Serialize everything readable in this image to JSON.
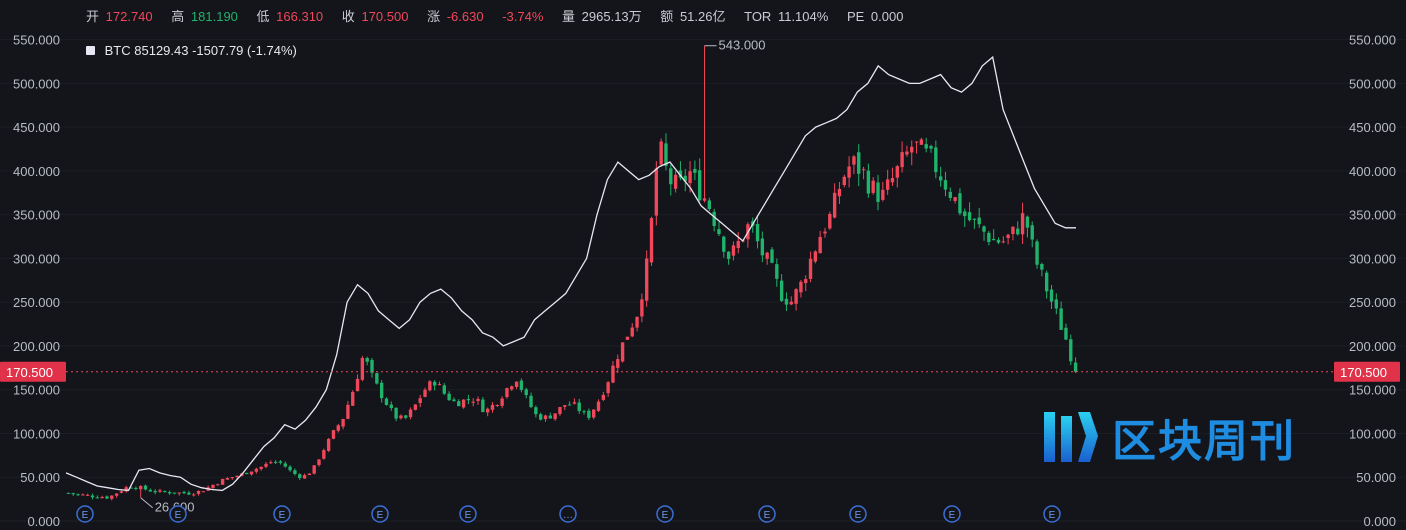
{
  "header": {
    "open_label": "开",
    "open_value": "172.740",
    "high_label": "高",
    "high_value": "181.190",
    "low_label": "低",
    "low_value": "166.310",
    "close_label": "收",
    "close_value": "170.500",
    "change_label": "涨",
    "change_value": "-6.630",
    "change_pct": "-3.74%",
    "volume_label": "量",
    "volume_value": "2965.13万",
    "amount_label": "额",
    "amount_value": "51.26亿",
    "tor_label": "TOR",
    "tor_value": "11.104%",
    "pe_label": "PE",
    "pe_value": "0.000"
  },
  "legend": {
    "symbol": "BTC",
    "value": "85129.43 -1507.79 (-1.74%)"
  },
  "watermark": {
    "text": "区块周刊"
  },
  "colors": {
    "up": "#f0475a",
    "down": "#1fb36b",
    "overlay": "#e8e6f5",
    "background": "#14151a",
    "brand": "#1e8ce0"
  },
  "chart_data": {
    "type": "candlestick",
    "ylim": [
      0,
      560
    ],
    "y_ticks": [
      "550.000",
      "500.000",
      "450.000",
      "400.000",
      "350.000",
      "300.000",
      "250.000",
      "200.000",
      "150.000",
      "100.000",
      "50.000",
      "0.000"
    ],
    "last_price": 170.5,
    "last_price_label": "170.500",
    "max_annotation": {
      "label": "543.000",
      "value": 543
    },
    "min_annotation": {
      "label": "26.600",
      "value": 26.6
    },
    "event_markers": [
      "E",
      "E",
      "E",
      "E",
      "E",
      "…",
      "E",
      "E",
      "E",
      "E",
      "E",
      "E"
    ],
    "stock_close_approx": [
      32,
      30,
      29,
      28,
      27,
      34,
      40,
      38,
      35,
      33,
      33,
      32,
      32,
      34,
      40,
      46,
      50,
      53,
      58,
      62,
      68,
      66,
      55,
      50,
      58,
      80,
      100,
      118,
      150,
      190,
      160,
      140,
      120,
      115,
      130,
      150,
      160,
      145,
      135,
      138,
      140,
      125,
      135,
      150,
      165,
      140,
      120,
      118,
      125,
      135,
      130,
      118,
      135,
      160,
      190,
      215,
      240,
      300,
      430,
      390,
      380,
      400,
      380,
      360,
      330,
      300,
      320,
      340,
      310,
      290,
      260,
      250,
      270,
      300,
      330,
      350,
      390,
      410,
      400,
      380,
      370,
      390,
      410,
      430,
      420,
      410,
      390,
      370,
      350,
      340,
      330,
      320,
      320,
      330,
      350,
      300,
      270,
      240,
      210,
      170.5
    ],
    "overlay_series": {
      "name": "BTC",
      "values_approx": [
        55,
        50,
        45,
        40,
        38,
        36,
        35,
        58,
        60,
        55,
        52,
        50,
        42,
        38,
        36,
        35,
        42,
        55,
        70,
        85,
        95,
        110,
        105,
        115,
        130,
        150,
        190,
        250,
        270,
        260,
        240,
        230,
        220,
        230,
        250,
        260,
        265,
        255,
        240,
        230,
        215,
        210,
        200,
        205,
        210,
        230,
        240,
        250,
        260,
        280,
        300,
        350,
        390,
        410,
        400,
        390,
        395,
        405,
        410,
        395,
        380,
        360,
        350,
        340,
        330,
        320,
        340,
        360,
        380,
        400,
        420,
        440,
        450,
        455,
        460,
        470,
        490,
        500,
        520,
        510,
        505,
        500,
        500,
        505,
        510,
        495,
        490,
        500,
        520,
        530,
        470,
        440,
        410,
        380,
        360,
        340,
        335,
        335
      ]
    }
  }
}
